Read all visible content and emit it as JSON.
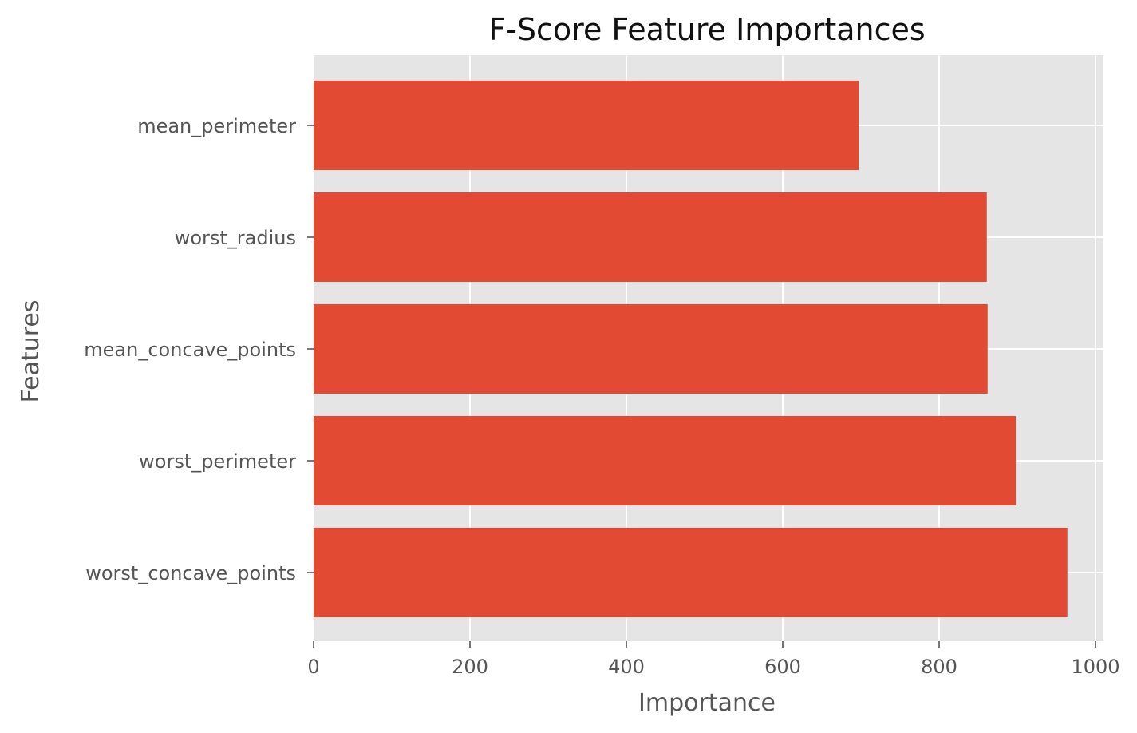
{
  "chart_data": {
    "type": "bar",
    "orientation": "horizontal",
    "title": "F-Score Feature Importances",
    "xlabel": "Importance",
    "ylabel": "Features",
    "categories": [
      "mean_perimeter",
      "worst_radius",
      "mean_concave_points",
      "worst_perimeter",
      "worst_concave_points"
    ],
    "values": [
      697,
      861,
      862,
      898,
      964
    ],
    "xlim": [
      0,
      1010
    ],
    "xticks": [
      0,
      200,
      400,
      600,
      800,
      1000
    ],
    "grid": true,
    "colors": {
      "bar": "#E24A33",
      "plot_background": "#E5E5E5",
      "grid": "#FFFFFF"
    }
  }
}
